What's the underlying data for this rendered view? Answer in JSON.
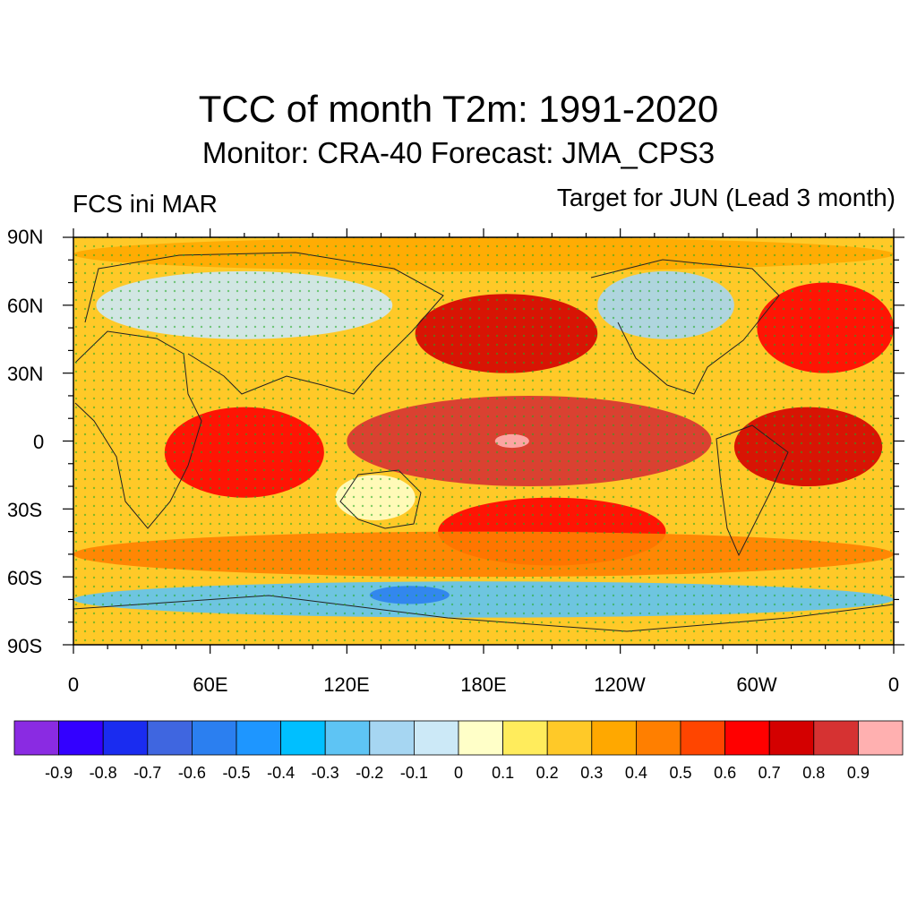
{
  "header": {
    "title": "TCC of month T2m: 1991-2020",
    "subtitle": "Monitor: CRA-40   Forecast: JMA_CPS3",
    "left_label": "FCS ini MAR",
    "right_label": "Target for JUN (Lead 3 month)"
  },
  "map": {
    "lat_labels": [
      "90N",
      "60N",
      "30N",
      "0",
      "30S",
      "60S",
      "90S"
    ],
    "lon_labels": [
      "0",
      "60E",
      "120E",
      "180E",
      "120W",
      "60W",
      "0"
    ],
    "legend_stipple": "green dots mark significant correlation",
    "regions": [
      {
        "name": "equatorial-pacific",
        "lon": [
          120,
          280
        ],
        "lat": [
          -20,
          20
        ],
        "value": 0.8
      },
      {
        "name": "central-pacific-core",
        "lon": [
          185,
          200
        ],
        "lat": [
          -3,
          3
        ],
        "value": 0.9
      },
      {
        "name": "north-pacific",
        "lon": [
          150,
          230
        ],
        "lat": [
          30,
          65
        ],
        "value": 0.7
      },
      {
        "name": "tropical-atlantic",
        "lon": [
          290,
          355
        ],
        "lat": [
          -20,
          15
        ],
        "value": 0.75
      },
      {
        "name": "indian-ocean",
        "lon": [
          40,
          110
        ],
        "lat": [
          -25,
          15
        ],
        "value": 0.65
      },
      {
        "name": "south-pacific",
        "lon": [
          160,
          260
        ],
        "lat": [
          -55,
          -25
        ],
        "value": 0.6
      },
      {
        "name": "north-atlantic",
        "lon": [
          300,
          360
        ],
        "lat": [
          30,
          70
        ],
        "value": 0.6
      },
      {
        "name": "southern-ocean",
        "lon": [
          0,
          360
        ],
        "lat": [
          -60,
          -40
        ],
        "value": 0.45
      },
      {
        "name": "eurasia",
        "lon": [
          10,
          140
        ],
        "lat": [
          45,
          75
        ],
        "value": -0.1
      },
      {
        "name": "north-america",
        "lon": [
          230,
          290
        ],
        "lat": [
          45,
          75
        ],
        "value": -0.2
      },
      {
        "name": "antarctica",
        "lon": [
          0,
          360
        ],
        "lat": [
          -78,
          -62
        ],
        "value": -0.3
      },
      {
        "name": "southern-ocean-south-of-australia",
        "lon": [
          130,
          165
        ],
        "lat": [
          -72,
          -64
        ],
        "value": -0.55
      },
      {
        "name": "australia",
        "lon": [
          115,
          150
        ],
        "lat": [
          -35,
          -15
        ],
        "value": 0.0
      },
      {
        "name": "arctic",
        "lon": [
          0,
          360
        ],
        "lat": [
          75,
          90
        ],
        "value": 0.3
      }
    ]
  },
  "colorbar": {
    "labels": [
      "-0.9",
      "-0.8",
      "-0.7",
      "-0.6",
      "-0.5",
      "-0.4",
      "-0.3",
      "-0.2",
      "-0.1",
      "0",
      "0.1",
      "0.2",
      "0.3",
      "0.4",
      "0.5",
      "0.6",
      "0.7",
      "0.8",
      "0.9"
    ],
    "colors": [
      "#8a2be2",
      "#3300ff",
      "#1a2cf0",
      "#3f66e0",
      "#2b7ff0",
      "#1e96ff",
      "#00bfff",
      "#5ec4f4",
      "#a6d6f2",
      "#cce9f7",
      "#ffffc8",
      "#ffec5c",
      "#ffc928",
      "#ffa800",
      "#ff7f00",
      "#ff4500",
      "#ff0000",
      "#d40000",
      "#d63232",
      "#ffb0b0"
    ]
  }
}
